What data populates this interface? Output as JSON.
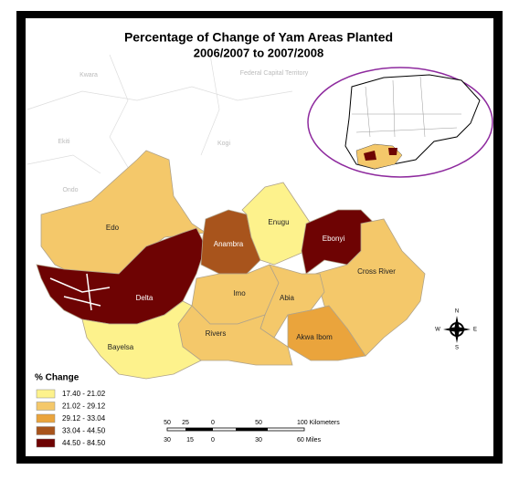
{
  "title": [
    "Percentage of Change of Yam Areas Planted",
    "2006/2007 to 2007/2008"
  ],
  "background_labels": [
    "Kwara",
    "Federal Capital Territory",
    "Ekiti",
    "Kogi",
    "Ondo"
  ],
  "states": [
    {
      "name": "Edo",
      "color": "#f4c86a"
    },
    {
      "name": "Delta",
      "color": "#6e0303"
    },
    {
      "name": "Anambra",
      "color": "#a8541c"
    },
    {
      "name": "Enugu",
      "color": "#fdf28c"
    },
    {
      "name": "Ebonyi",
      "color": "#6e0303"
    },
    {
      "name": "Cross River",
      "color": "#f4c86a"
    },
    {
      "name": "Imo",
      "color": "#f4c86a"
    },
    {
      "name": "Abia",
      "color": "#f4c86a"
    },
    {
      "name": "Akwa Ibom",
      "color": "#eaa43c"
    },
    {
      "name": "Rivers",
      "color": "#f4c86a"
    },
    {
      "name": "Bayelsa",
      "color": "#fdf28c"
    }
  ],
  "legend": {
    "title": "% Change",
    "classes": [
      {
        "label": "17.40 - 21.02",
        "color": "#fdf28c"
      },
      {
        "label": "21.02 - 29.12",
        "color": "#f4c86a"
      },
      {
        "label": "29.12 - 33.04",
        "color": "#eaa43c"
      },
      {
        "label": "33.04 - 44.50",
        "color": "#a8541c"
      },
      {
        "label": "44.50 - 84.50",
        "color": "#6e0303"
      }
    ]
  },
  "compass": {
    "north": "N",
    "south": "S",
    "east": "E",
    "west": "W"
  },
  "scale": {
    "kilometers": [
      "50",
      "25",
      "0",
      "50",
      "100 Kilometers"
    ],
    "miles": [
      "30",
      "15",
      "0",
      "30",
      "60 Miles"
    ]
  }
}
